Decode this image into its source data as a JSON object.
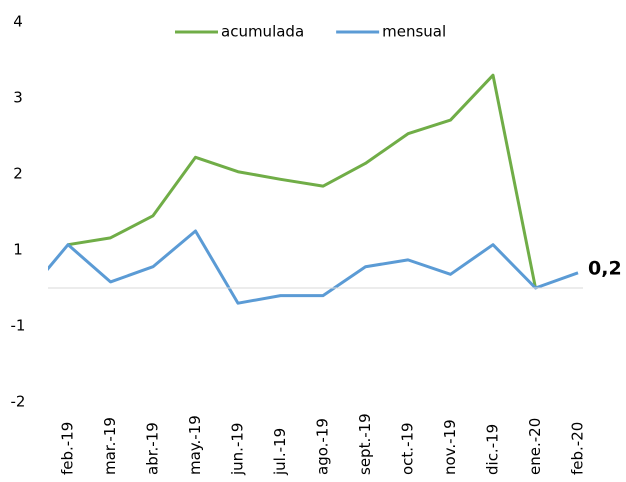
{
  "chart_data": {
    "type": "line",
    "categories": [
      null,
      "feb.-19",
      "mar.-19",
      "abr.-19",
      "may.-19",
      "jun.-19",
      "jul.-19",
      "ago.-19",
      "sept.-19",
      "oct.-19",
      "nov.-19",
      "dic.-19",
      "ene.-20",
      "feb.-20"
    ],
    "series": [
      {
        "name": "acumulada",
        "color": "#70ad47",
        "values": [
          null,
          0.57,
          0.66,
          0.95,
          1.72,
          1.53,
          1.43,
          1.34,
          1.64,
          2.03,
          2.21,
          2.8,
          0,
          null
        ]
      },
      {
        "name": "mensual",
        "color": "#5b9bd5",
        "values": [
          -0.1,
          0.57,
          0.08,
          0.28,
          0.75,
          -0.2,
          -0.1,
          -0.1,
          0.28,
          0.37,
          0.18,
          0.57,
          0,
          0.2
        ],
        "value_labels": [
          null,
          null,
          null,
          null,
          null,
          null,
          null,
          null,
          null,
          null,
          null,
          null,
          null,
          "0,2"
        ]
      }
    ],
    "ylim": [
      -1.5,
      3.5
    ],
    "yticks": [
      {
        "value": 3.5,
        "label": "4"
      },
      {
        "value": 2.5,
        "label": "3"
      },
      {
        "value": 1.5,
        "label": "2"
      },
      {
        "value": 0.5,
        "label": "1"
      },
      {
        "value": -0.5,
        "label": "-1"
      },
      {
        "value": -1.5,
        "label": "-2"
      }
    ],
    "legend": "top"
  }
}
